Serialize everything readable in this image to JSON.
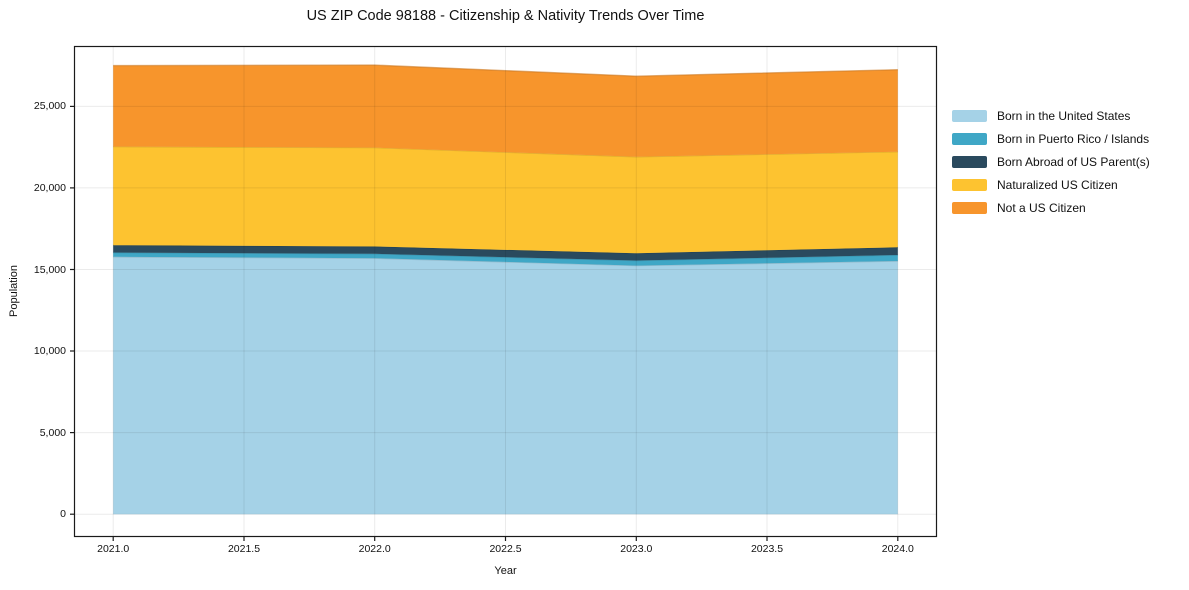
{
  "chart_data": {
    "type": "area",
    "stacked": true,
    "title": "US ZIP Code 98188 - Citizenship & Nativity Trends Over Time",
    "xlabel": "Year",
    "ylabel": "Population",
    "x": [
      2021,
      2022,
      2023,
      2024
    ],
    "series": [
      {
        "name": "Born in the United States",
        "color": "#a5d2e7",
        "values": [
          15780,
          15690,
          15240,
          15520
        ]
      },
      {
        "name": "Born in Puerto Rico / Islands",
        "color": "#3fa7c6",
        "values": [
          260,
          270,
          310,
          370
        ]
      },
      {
        "name": "Born Abroad of US Parent(s)",
        "color": "#2a4a5e",
        "values": [
          450,
          450,
          450,
          470
        ]
      },
      {
        "name": "Naturalized US Citizen",
        "color": "#fdc330",
        "values": [
          6040,
          6060,
          5910,
          5860
        ]
      },
      {
        "name": "Not a US Citizen",
        "color": "#f7952c",
        "values": [
          4970,
          5060,
          4940,
          5030
        ]
      }
    ],
    "x_ticks": [
      2021.0,
      2021.5,
      2022.0,
      2022.5,
      2023.0,
      2023.5,
      2024.0
    ],
    "x_tick_labels": [
      "2021.0",
      "2021.5",
      "2022.0",
      "2022.5",
      "2023.0",
      "2023.5",
      "2024.0"
    ],
    "y_ticks": [
      0,
      5000,
      10000,
      15000,
      20000,
      25000
    ],
    "y_tick_labels": [
      "0",
      "5,000",
      "10,000",
      "15,000",
      "20,000",
      "25,000"
    ],
    "xlim": [
      2020.85,
      2024.15
    ],
    "ylim": [
      -1400,
      28700
    ],
    "grid": true,
    "legend_position": "right-outside",
    "spine_color": "#1a1a1a",
    "grid_color": "rgba(0,0,0,0.08)"
  }
}
